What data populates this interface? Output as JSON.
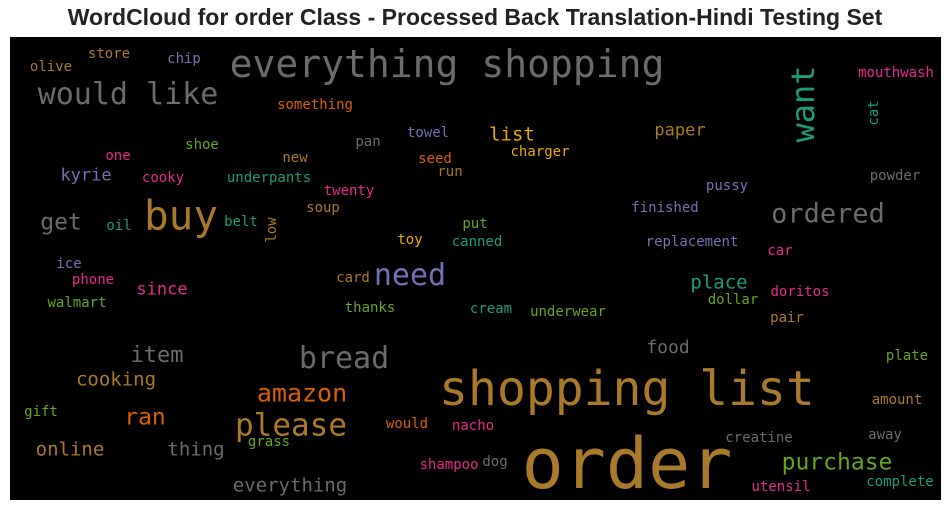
{
  "chart_data": {
    "type": "wordcloud",
    "title": "WordCloud for order Class - Processed Back Translation-Hindi Testing Set",
    "background": "#000000",
    "words": [
      {
        "text": "order",
        "color": "#a97a2b"
      },
      {
        "text": "shopping list",
        "color": "#a97a2b"
      },
      {
        "text": "everything shopping",
        "color": "#6b6b6b"
      },
      {
        "text": "buy",
        "color": "#a97a2b"
      },
      {
        "text": "would like",
        "color": "#6b6b6b"
      },
      {
        "text": "want",
        "color": "#1b9e77"
      },
      {
        "text": "please",
        "color": "#a97a2b"
      },
      {
        "text": "need",
        "color": "#7570b3"
      },
      {
        "text": "bread",
        "color": "#6b6b6b"
      },
      {
        "text": "amazon",
        "color": "#d95f02"
      },
      {
        "text": "ordered",
        "color": "#6b6b6b"
      },
      {
        "text": "purchase",
        "color": "#66a61e"
      },
      {
        "text": "item",
        "color": "#6b6b6b"
      },
      {
        "text": "ran",
        "color": "#d95f02"
      },
      {
        "text": "get",
        "color": "#6b6b6b"
      },
      {
        "text": "online",
        "color": "#a97a2b"
      },
      {
        "text": "place",
        "color": "#1b9e77"
      },
      {
        "text": "cooking",
        "color": "#a97a2b"
      },
      {
        "text": "thing",
        "color": "#6b6b6b"
      },
      {
        "text": "everything",
        "color": "#6b6b6b"
      },
      {
        "text": "list",
        "color": "#e6ab02"
      },
      {
        "text": "paper",
        "color": "#a97a2b"
      },
      {
        "text": "food",
        "color": "#6b6b6b"
      },
      {
        "text": "kyrie",
        "color": "#7570b3"
      },
      {
        "text": "since",
        "color": "#e7298a"
      },
      {
        "text": "mouthwash",
        "color": "#e7298a"
      },
      {
        "text": "cat",
        "color": "#1b9e77"
      },
      {
        "text": "store",
        "color": "#a97a2b"
      },
      {
        "text": "olive",
        "color": "#a97a2b"
      },
      {
        "text": "chip",
        "color": "#7570b3"
      },
      {
        "text": "something",
        "color": "#d95f02"
      },
      {
        "text": "towel",
        "color": "#7570b3"
      },
      {
        "text": "pan",
        "color": "#6b6b6b"
      },
      {
        "text": "shoe",
        "color": "#66a61e"
      },
      {
        "text": "one",
        "color": "#e7298a"
      },
      {
        "text": "new",
        "color": "#a97a2b"
      },
      {
        "text": "seed",
        "color": "#d95f02"
      },
      {
        "text": "charger",
        "color": "#e6ab02"
      },
      {
        "text": "run",
        "color": "#a97a2b"
      },
      {
        "text": "cooky",
        "color": "#e7298a"
      },
      {
        "text": "underpants",
        "color": "#1b9e77"
      },
      {
        "text": "twenty",
        "color": "#e7298a"
      },
      {
        "text": "pussy",
        "color": "#7570b3"
      },
      {
        "text": "powder",
        "color": "#6b6b6b"
      },
      {
        "text": "finished",
        "color": "#7570b3"
      },
      {
        "text": "oil",
        "color": "#1b9e77"
      },
      {
        "text": "belt",
        "color": "#1b9e77"
      },
      {
        "text": "low",
        "color": "#a97a2b"
      },
      {
        "text": "soup",
        "color": "#a97a2b"
      },
      {
        "text": "put",
        "color": "#66a61e"
      },
      {
        "text": "toy",
        "color": "#e6ab02"
      },
      {
        "text": "canned",
        "color": "#1b9e77"
      },
      {
        "text": "replacement",
        "color": "#7570b3"
      },
      {
        "text": "car",
        "color": "#e7298a"
      },
      {
        "text": "ice",
        "color": "#7570b3"
      },
      {
        "text": "phone",
        "color": "#e7298a"
      },
      {
        "text": "card",
        "color": "#a97a2b"
      },
      {
        "text": "walmart",
        "color": "#66a61e"
      },
      {
        "text": "doritos",
        "color": "#e7298a"
      },
      {
        "text": "dollar",
        "color": "#66a61e"
      },
      {
        "text": "thanks",
        "color": "#66a61e"
      },
      {
        "text": "cream",
        "color": "#1b9e77"
      },
      {
        "text": "underwear",
        "color": "#66a61e"
      },
      {
        "text": "pair",
        "color": "#a97a2b"
      },
      {
        "text": "plate",
        "color": "#66a61e"
      },
      {
        "text": "amount",
        "color": "#a97a2b"
      },
      {
        "text": "gift",
        "color": "#66a61e"
      },
      {
        "text": "would",
        "color": "#d95f02"
      },
      {
        "text": "nacho",
        "color": "#e7298a"
      },
      {
        "text": "grass",
        "color": "#66a61e"
      },
      {
        "text": "creatine",
        "color": "#6b6b6b"
      },
      {
        "text": "away",
        "color": "#6b6b6b"
      },
      {
        "text": "shampoo",
        "color": "#e7298a"
      },
      {
        "text": "dog",
        "color": "#6b6b6b"
      },
      {
        "text": "utensil",
        "color": "#e7298a"
      },
      {
        "text": "complete",
        "color": "#1b9e77"
      }
    ]
  }
}
